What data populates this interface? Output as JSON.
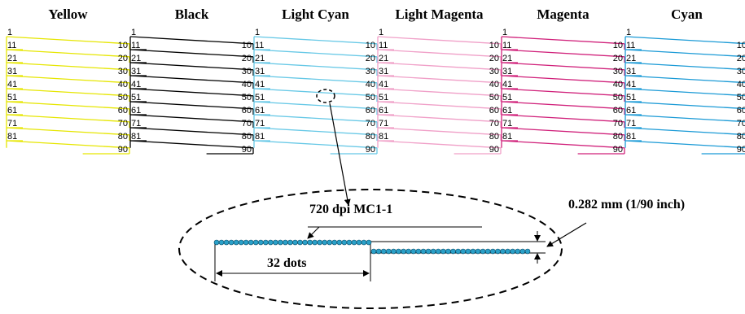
{
  "columns": [
    {
      "name": "Yellow",
      "color": "#e6e600"
    },
    {
      "name": "Black",
      "color": "#000000"
    },
    {
      "name": "Light Cyan",
      "color": "#66c8e6"
    },
    {
      "name": "Light Magenta",
      "color": "#f0a0c8"
    },
    {
      "name": "Magenta",
      "color": "#d0207a"
    },
    {
      "name": "Cyan",
      "color": "#1a9ad6"
    }
  ],
  "nozzles": {
    "top_label": "1",
    "left_labels": [
      "11",
      "21",
      "31",
      "41",
      "51",
      "61",
      "71",
      "81"
    ],
    "right_labels": [
      "10",
      "20",
      "30",
      "40",
      "50",
      "60",
      "70",
      "80",
      "90"
    ]
  },
  "detail": {
    "label": "720 dpi MC1-1",
    "dots_label": "32 dots",
    "pitch_label": "0.282 mm (1/90 inch)",
    "dot_color": "#2aa0c8",
    "dots_per_segment": 32
  }
}
